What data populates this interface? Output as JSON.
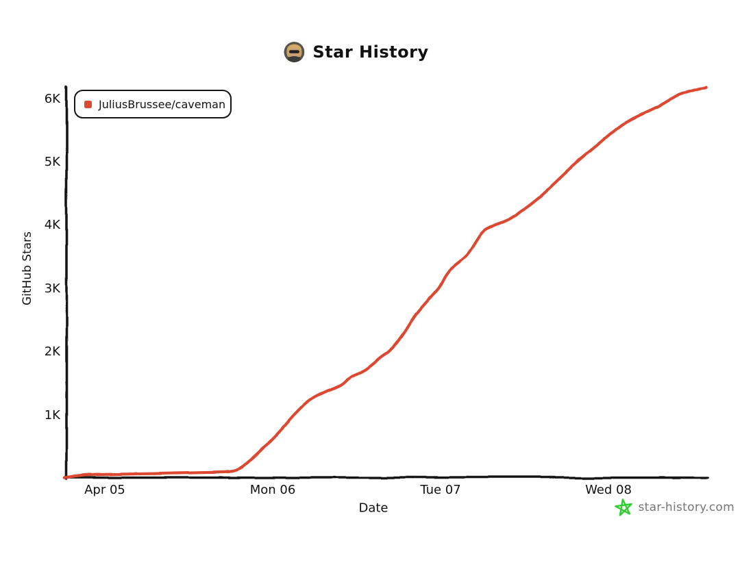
{
  "header": {
    "title": "Star History",
    "avatar": "repo-owner-avatar"
  },
  "legend": {
    "items": [
      {
        "label": "JuliusBrussee/caveman",
        "color": "#DC4A31"
      }
    ]
  },
  "axes": {
    "xlabel": "Date",
    "ylabel": "GitHub Stars"
  },
  "watermark": {
    "label": "star-history.com",
    "star_color": "#2FCE2F",
    "text_color": "#767676"
  },
  "colors": {
    "series": "#DC4A31",
    "axis": "#141414",
    "background": "#ffffff"
  },
  "chart_data": {
    "type": "line",
    "title": "Star History",
    "xlabel": "Date",
    "ylabel": "GitHub Stars",
    "grid": false,
    "legend_position": "top-left",
    "x_axis": {
      "kind": "time",
      "unit": "days relative to Apr 05 tick",
      "tick_labels": [
        "Apr 05",
        "Mon 06",
        "Tue 07",
        "Wed 08"
      ],
      "tick_positions_days": [
        0,
        1,
        2,
        3
      ],
      "range_days": [
        -0.24,
        3.59
      ]
    },
    "y_axis": {
      "tick_labels": [
        "1K",
        "2K",
        "3K",
        "4K",
        "5K",
        "6K"
      ],
      "tick_values": [
        1000,
        2000,
        3000,
        4000,
        5000,
        6000
      ],
      "range": [
        0,
        6190
      ]
    },
    "series": [
      {
        "name": "JuliusBrussee/caveman",
        "color": "#DC4A31",
        "end_value_approx": 6190,
        "points_day_stars": [
          [
            -0.24,
            15
          ],
          [
            -0.12,
            60
          ],
          [
            0.05,
            75
          ],
          [
            0.3,
            85
          ],
          [
            0.55,
            100
          ],
          [
            0.74,
            115
          ],
          [
            0.81,
            175
          ],
          [
            0.88,
            330
          ],
          [
            0.94,
            480
          ],
          [
            1.0,
            620
          ],
          [
            1.06,
            790
          ],
          [
            1.13,
            1000
          ],
          [
            1.22,
            1230
          ],
          [
            1.31,
            1360
          ],
          [
            1.41,
            1480
          ],
          [
            1.47,
            1620
          ],
          [
            1.55,
            1720
          ],
          [
            1.65,
            1930
          ],
          [
            1.7,
            2020
          ],
          [
            1.78,
            2300
          ],
          [
            1.85,
            2590
          ],
          [
            1.92,
            2810
          ],
          [
            1.99,
            3020
          ],
          [
            2.05,
            3280
          ],
          [
            2.16,
            3540
          ],
          [
            2.25,
            3890
          ],
          [
            2.32,
            4000
          ],
          [
            2.4,
            4090
          ],
          [
            2.49,
            4250
          ],
          [
            2.6,
            4480
          ],
          [
            2.79,
            4950
          ],
          [
            2.93,
            5260
          ],
          [
            3.1,
            5620
          ],
          [
            3.29,
            5870
          ],
          [
            3.42,
            6060
          ],
          [
            3.58,
            6190
          ]
        ]
      }
    ]
  }
}
